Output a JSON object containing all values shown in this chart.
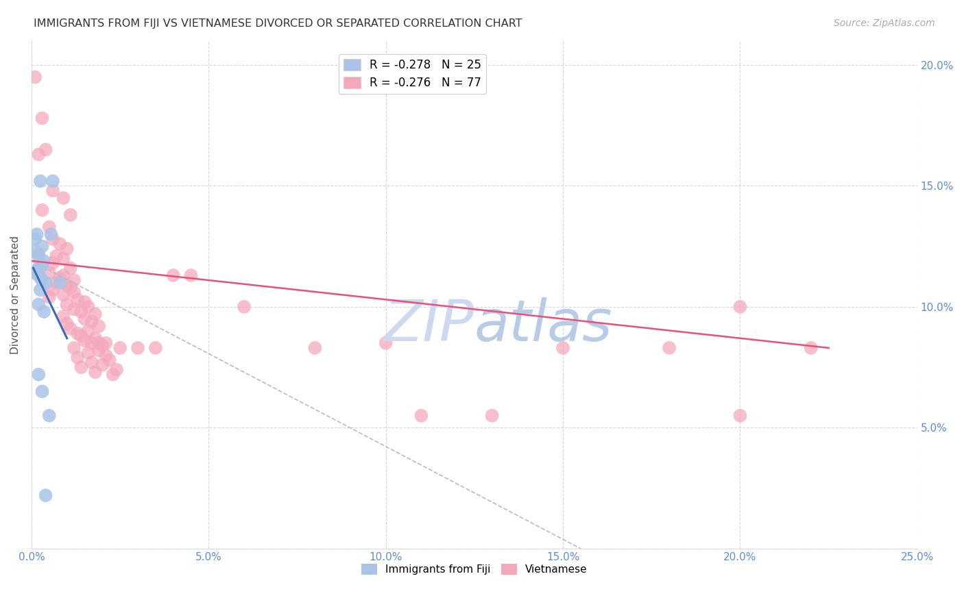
{
  "title": "IMMIGRANTS FROM FIJI VS VIETNAMESE DIVORCED OR SEPARATED CORRELATION CHART",
  "source": "Source: ZipAtlas.com",
  "ylabel": "Divorced or Separated",
  "x_min": 0.0,
  "x_max": 0.25,
  "y_min": 0.0,
  "y_max": 0.21,
  "x_ticks": [
    0.0,
    0.05,
    0.1,
    0.15,
    0.2,
    0.25
  ],
  "y_ticks": [
    0.0,
    0.05,
    0.1,
    0.15,
    0.2
  ],
  "legend_entries": [
    {
      "label": "R = -0.278   N = 25",
      "color": "#aac4e8"
    },
    {
      "label": "R = -0.276   N = 77",
      "color": "#f4a0b5"
    }
  ],
  "legend_labels_bottom": [
    "Immigrants from Fiji",
    "Vietnamese"
  ],
  "fiji_color": "#aac4e8",
  "viet_color": "#f5a8bc",
  "fiji_line_color": "#3a6ab5",
  "viet_line_color": "#e8507a",
  "dashed_line_color": "#bbbbbb",
  "fiji_points": [
    [
      0.0015,
      0.13
    ],
    [
      0.0055,
      0.13
    ],
    [
      0.0025,
      0.152
    ],
    [
      0.006,
      0.152
    ],
    [
      0.001,
      0.128
    ],
    [
      0.003,
      0.125
    ],
    [
      0.001,
      0.123
    ],
    [
      0.002,
      0.121
    ],
    [
      0.0035,
      0.119
    ],
    [
      0.003,
      0.117
    ],
    [
      0.002,
      0.116
    ],
    [
      0.0015,
      0.115
    ],
    [
      0.001,
      0.114
    ],
    [
      0.002,
      0.113
    ],
    [
      0.0025,
      0.112
    ],
    [
      0.003,
      0.111
    ],
    [
      0.004,
      0.11
    ],
    [
      0.008,
      0.11
    ],
    [
      0.0025,
      0.107
    ],
    [
      0.002,
      0.101
    ],
    [
      0.0035,
      0.098
    ],
    [
      0.002,
      0.072
    ],
    [
      0.003,
      0.065
    ],
    [
      0.005,
      0.055
    ],
    [
      0.004,
      0.022
    ]
  ],
  "viet_points": [
    [
      0.001,
      0.195
    ],
    [
      0.003,
      0.178
    ],
    [
      0.004,
      0.165
    ],
    [
      0.002,
      0.163
    ],
    [
      0.006,
      0.148
    ],
    [
      0.009,
      0.145
    ],
    [
      0.003,
      0.14
    ],
    [
      0.011,
      0.138
    ],
    [
      0.005,
      0.133
    ],
    [
      0.006,
      0.128
    ],
    [
      0.008,
      0.126
    ],
    [
      0.01,
      0.124
    ],
    [
      0.002,
      0.122
    ],
    [
      0.007,
      0.121
    ],
    [
      0.009,
      0.12
    ],
    [
      0.006,
      0.118
    ],
    [
      0.011,
      0.116
    ],
    [
      0.005,
      0.114
    ],
    [
      0.009,
      0.113
    ],
    [
      0.008,
      0.112
    ],
    [
      0.012,
      0.111
    ],
    [
      0.007,
      0.11
    ],
    [
      0.01,
      0.109
    ],
    [
      0.011,
      0.108
    ],
    [
      0.006,
      0.107
    ],
    [
      0.012,
      0.106
    ],
    [
      0.009,
      0.105
    ],
    [
      0.005,
      0.104
    ],
    [
      0.013,
      0.103
    ],
    [
      0.015,
      0.102
    ],
    [
      0.01,
      0.101
    ],
    [
      0.016,
      0.1
    ],
    [
      0.012,
      0.099
    ],
    [
      0.014,
      0.098
    ],
    [
      0.018,
      0.097
    ],
    [
      0.009,
      0.096
    ],
    [
      0.015,
      0.095
    ],
    [
      0.017,
      0.094
    ],
    [
      0.01,
      0.093
    ],
    [
      0.019,
      0.092
    ],
    [
      0.011,
      0.091
    ],
    [
      0.016,
      0.09
    ],
    [
      0.013,
      0.089
    ],
    [
      0.014,
      0.088
    ],
    [
      0.018,
      0.087
    ],
    [
      0.015,
      0.086
    ],
    [
      0.017,
      0.085
    ],
    [
      0.02,
      0.084
    ],
    [
      0.012,
      0.083
    ],
    [
      0.019,
      0.082
    ],
    [
      0.016,
      0.081
    ],
    [
      0.021,
      0.08
    ],
    [
      0.013,
      0.079
    ],
    [
      0.022,
      0.078
    ],
    [
      0.017,
      0.077
    ],
    [
      0.02,
      0.076
    ],
    [
      0.014,
      0.075
    ],
    [
      0.024,
      0.074
    ],
    [
      0.018,
      0.073
    ],
    [
      0.023,
      0.072
    ],
    [
      0.021,
      0.085
    ],
    [
      0.019,
      0.085
    ],
    [
      0.025,
      0.083
    ],
    [
      0.03,
      0.083
    ],
    [
      0.035,
      0.083
    ],
    [
      0.04,
      0.113
    ],
    [
      0.045,
      0.113
    ],
    [
      0.06,
      0.1
    ],
    [
      0.08,
      0.083
    ],
    [
      0.1,
      0.085
    ],
    [
      0.11,
      0.055
    ],
    [
      0.13,
      0.055
    ],
    [
      0.15,
      0.083
    ],
    [
      0.18,
      0.083
    ],
    [
      0.2,
      0.1
    ],
    [
      0.22,
      0.083
    ],
    [
      0.2,
      0.055
    ]
  ],
  "fiji_line": {
    "x0": 0.0005,
    "y0": 0.116,
    "x1": 0.01,
    "y1": 0.087
  },
  "viet_line": {
    "x0": 0.0,
    "y0": 0.119,
    "x1": 0.225,
    "y1": 0.083
  },
  "dashed_line": {
    "x0": 0.0,
    "y0": 0.119,
    "x1": 0.155,
    "y1": 0.0
  },
  "watermark_zip": "ZIP",
  "watermark_atlas": "atlas",
  "watermark_color": "#ccd9f0",
  "background_color": "#ffffff",
  "grid_color": "#cccccc",
  "tick_label_color_right": "#5b8dd9",
  "tick_label_color_bottom": "#5b8dd9"
}
